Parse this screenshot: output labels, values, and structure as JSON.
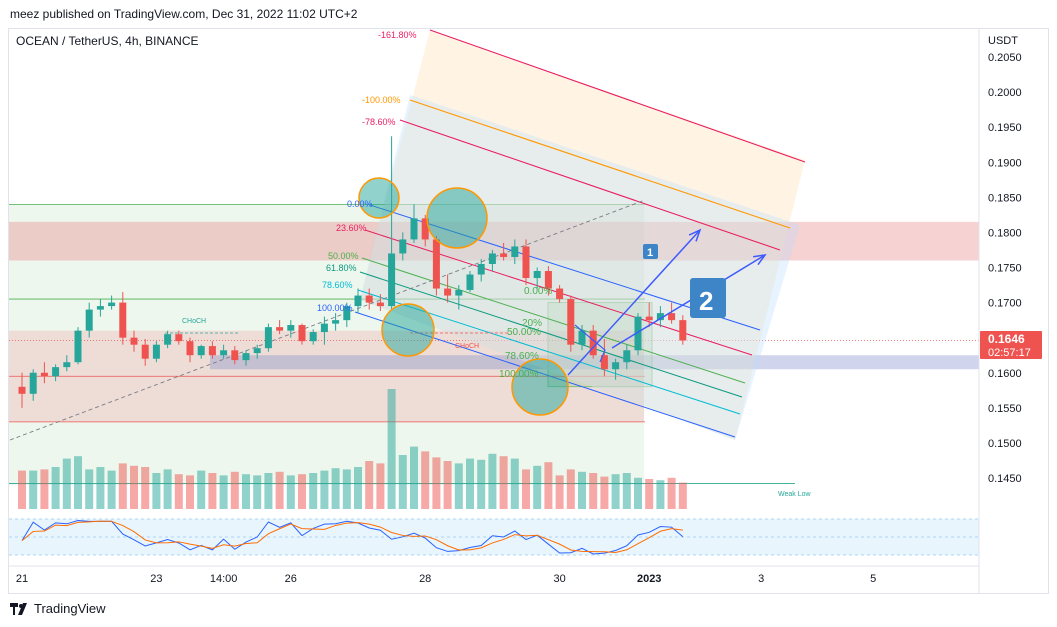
{
  "publisher_line": "meez published on TradingView.com, Dec 31, 2022 11:02 UTC+2",
  "brand": {
    "name": "TradingView",
    "logo_icon": "tradingview-logo-icon"
  },
  "symbol_line": "OCEAN / TetherUS, 4h, BINANCE",
  "currency": "USDT",
  "last_price": "0.1646",
  "countdown": "02:57:17",
  "colors": {
    "up": "#26a69a",
    "down": "#ef5350",
    "fib_red": "#e91e63",
    "fib_orange": "#ff9800",
    "channel_blue": "#2962ff"
  },
  "chart_data": {
    "type": "candlestick",
    "y_ticks": [
      "0.2050",
      "0.2000",
      "0.1950",
      "0.1900",
      "0.1850",
      "0.1800",
      "0.1750",
      "0.1700",
      "0.1650",
      "0.1600",
      "0.1550",
      "0.1500",
      "0.1450"
    ],
    "ylim": [
      0.1395,
      0.2075
    ],
    "x_ticks": [
      "21",
      "23",
      "14:00",
      "26",
      "28",
      "30",
      "2023",
      "3",
      "5"
    ],
    "x_tick_bars": [
      0,
      12,
      18,
      24,
      36,
      48,
      56,
      66,
      76
    ],
    "bar_count_range": [
      -1,
      86
    ],
    "candles": [
      [
        0.158,
        0.16,
        0.155,
        0.157
      ],
      [
        0.157,
        0.1605,
        0.156,
        0.16
      ],
      [
        0.16,
        0.1615,
        0.1585,
        0.1595
      ],
      [
        0.1595,
        0.1612,
        0.1588,
        0.1608
      ],
      [
        0.1608,
        0.1625,
        0.1602,
        0.1615
      ],
      [
        0.1615,
        0.1665,
        0.1612,
        0.166
      ],
      [
        0.166,
        0.17,
        0.165,
        0.169
      ],
      [
        0.169,
        0.1705,
        0.168,
        0.1695
      ],
      [
        0.1695,
        0.171,
        0.169,
        0.17
      ],
      [
        0.17,
        0.1715,
        0.164,
        0.165
      ],
      [
        0.165,
        0.166,
        0.163,
        0.164
      ],
      [
        0.164,
        0.1648,
        0.161,
        0.162
      ],
      [
        0.162,
        0.1645,
        0.1615,
        0.164
      ],
      [
        0.164,
        0.166,
        0.1635,
        0.1655
      ],
      [
        0.1655,
        0.166,
        0.164,
        0.1645
      ],
      [
        0.1645,
        0.165,
        0.1615,
        0.1625
      ],
      [
        0.1625,
        0.164,
        0.162,
        0.1638
      ],
      [
        0.1638,
        0.1645,
        0.162,
        0.1625
      ],
      [
        0.1625,
        0.164,
        0.162,
        0.1632
      ],
      [
        0.1632,
        0.1638,
        0.1612,
        0.1618
      ],
      [
        0.1618,
        0.1632,
        0.161,
        0.1628
      ],
      [
        0.1628,
        0.164,
        0.162,
        0.1635
      ],
      [
        0.1635,
        0.167,
        0.163,
        0.1665
      ],
      [
        0.1665,
        0.1675,
        0.1655,
        0.166
      ],
      [
        0.166,
        0.1675,
        0.165,
        0.1668
      ],
      [
        0.1668,
        0.167,
        0.164,
        0.1645
      ],
      [
        0.1645,
        0.1662,
        0.164,
        0.1658
      ],
      [
        0.1658,
        0.168,
        0.164,
        0.167
      ],
      [
        0.167,
        0.1685,
        0.166,
        0.1675
      ],
      [
        0.1675,
        0.17,
        0.1665,
        0.1695
      ],
      [
        0.1695,
        0.172,
        0.1685,
        0.171
      ],
      [
        0.171,
        0.172,
        0.169,
        0.17
      ],
      [
        0.17,
        0.1712,
        0.1688,
        0.1695
      ],
      [
        0.1695,
        0.1937,
        0.169,
        0.177
      ],
      [
        0.177,
        0.18,
        0.176,
        0.179
      ],
      [
        0.179,
        0.184,
        0.1785,
        0.182
      ],
      [
        0.182,
        0.1825,
        0.178,
        0.179
      ],
      [
        0.179,
        0.1795,
        0.171,
        0.172
      ],
      [
        0.172,
        0.174,
        0.17,
        0.171
      ],
      [
        0.171,
        0.1725,
        0.169,
        0.1718
      ],
      [
        0.1718,
        0.1745,
        0.1715,
        0.174
      ],
      [
        0.174,
        0.1762,
        0.173,
        0.1755
      ],
      [
        0.1755,
        0.1775,
        0.1745,
        0.177
      ],
      [
        0.177,
        0.1785,
        0.176,
        0.1765
      ],
      [
        0.1765,
        0.179,
        0.1755,
        0.178
      ],
      [
        0.178,
        0.179,
        0.1725,
        0.1735
      ],
      [
        0.1735,
        0.175,
        0.172,
        0.1745
      ],
      [
        0.1745,
        0.1752,
        0.171,
        0.172
      ],
      [
        0.172,
        0.1725,
        0.17,
        0.1705
      ],
      [
        0.1705,
        0.171,
        0.163,
        0.164
      ],
      [
        0.164,
        0.1668,
        0.1632,
        0.166
      ],
      [
        0.166,
        0.1668,
        0.162,
        0.1625
      ],
      [
        0.1625,
        0.1648,
        0.1595,
        0.1605
      ],
      [
        0.1605,
        0.162,
        0.159,
        0.1615
      ],
      [
        0.1615,
        0.164,
        0.1605,
        0.1632
      ],
      [
        0.1632,
        0.1685,
        0.1625,
        0.168
      ],
      [
        0.168,
        0.17,
        0.1665,
        0.1675
      ],
      [
        0.1675,
        0.1695,
        0.1665,
        0.1685
      ],
      [
        0.1685,
        0.17,
        0.167,
        0.1675
      ],
      [
        0.1675,
        0.1682,
        0.164,
        0.1646
      ]
    ],
    "volume": [
      320,
      320,
      330,
      350,
      420,
      440,
      330,
      350,
      320,
      380,
      360,
      350,
      300,
      330,
      290,
      280,
      320,
      300,
      280,
      310,
      290,
      280,
      300,
      310,
      280,
      290,
      300,
      320,
      340,
      330,
      350,
      400,
      380,
      1000,
      450,
      520,
      480,
      430,
      400,
      380,
      420,
      410,
      460,
      440,
      420,
      330,
      360,
      390,
      280,
      330,
      310,
      300,
      270,
      290,
      300,
      260,
      250,
      240,
      260,
      220
    ],
    "annotations": [
      "CHoCH",
      "CHoCH",
      "Weak Low",
      "1",
      "2"
    ],
    "fib_labels_outer": [
      "-161.80%",
      "-100.00%",
      "-78.60%",
      "0.00%",
      "23.60%",
      "50.00%",
      "61.80%",
      "78.60%",
      "100.00%"
    ],
    "fib_labels_inner": [
      "0.00%",
      "20%",
      "50.00%",
      "78.60%",
      "100.00%"
    ]
  }
}
